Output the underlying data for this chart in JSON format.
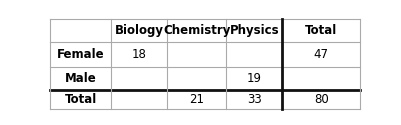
{
  "col_headers": [
    "",
    "Biology",
    "Chemistry",
    "Physics",
    "Total"
  ],
  "rows": [
    {
      "label": "Female",
      "values": [
        "18",
        "",
        "",
        "47"
      ]
    },
    {
      "label": "Male",
      "values": [
        "",
        "",
        "19",
        ""
      ]
    },
    {
      "label": "Total",
      "values": [
        "",
        "21",
        "33",
        "80"
      ]
    }
  ],
  "background_color": "#ffffff",
  "cell_bg": "#ffffff",
  "border_color": "#aaaaaa",
  "thick_border_color": "#111111",
  "font_size": 8.5,
  "col_starts": [
    0.0,
    0.195,
    0.375,
    0.565,
    0.745
  ],
  "col_ends": [
    0.195,
    0.375,
    0.565,
    0.745,
    0.995
  ],
  "row_tops": [
    0.96,
    0.72,
    0.46,
    0.22
  ],
  "row_bottoms": [
    0.72,
    0.46,
    0.22,
    0.02
  ]
}
